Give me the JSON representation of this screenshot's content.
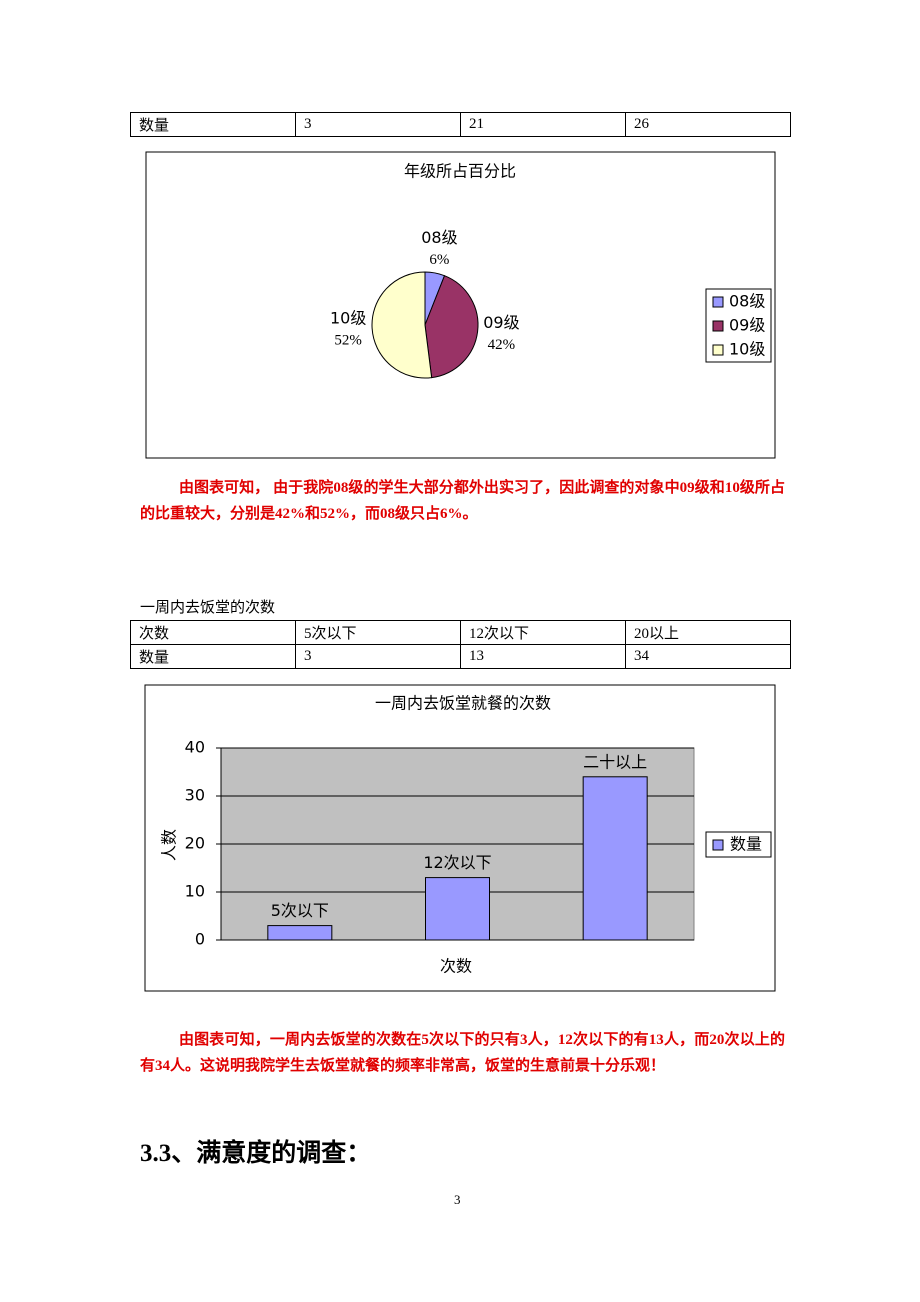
{
  "table1": {
    "rows": [
      [
        "数量",
        3,
        21,
        26
      ]
    ]
  },
  "chart_data": [
    {
      "type": "pie",
      "title": "年级所占百分比",
      "categories": [
        "08级",
        "09级",
        "10级"
      ],
      "values": [
        6,
        42,
        52
      ],
      "value_labels": [
        "6%",
        "42%",
        "52%"
      ],
      "colors": [
        "#9999ff",
        "#993366",
        "#ffffcc"
      ],
      "legend": "right"
    },
    {
      "type": "bar",
      "title": "一周内去饭堂就餐的次数",
      "ylabel": "人数",
      "xlabel": "次数",
      "categories": [
        "5次以下",
        "12次以下",
        "二十以上"
      ],
      "series": [
        {
          "name": "数量",
          "color": "#9999ff",
          "values": [
            3,
            13,
            34
          ]
        }
      ],
      "ylim": [
        0,
        40
      ],
      "yticks": [
        0,
        10,
        20,
        30,
        40
      ],
      "grid": true,
      "legend": "right"
    }
  ],
  "paragraph1": "由图表可知， 由于我院08级的学生大部分都外出实习了，因此调查的对象中09级和10级所占的比重较大，分别是42%和52%，而08级只占6%。",
  "table2": {
    "caption": "一周内去饭堂的次数",
    "rows": [
      [
        "次数",
        "5次以下",
        "12次以下",
        "20以上"
      ],
      [
        "数量",
        3,
        13,
        34
      ]
    ]
  },
  "paragraph2": "由图表可知，一周内去饭堂的次数在5次以下的只有3人，12次以下的有13人，而20次以上的有34人。这说明我院学生去饭堂就餐的频率非常高，饭堂的生意前景十分乐观！",
  "heading": "3.3、满意度的调查：",
  "page_number": "3"
}
